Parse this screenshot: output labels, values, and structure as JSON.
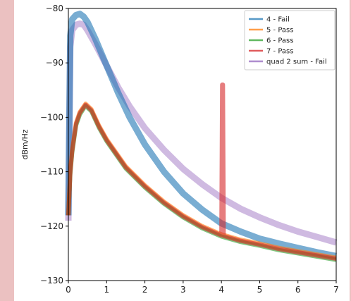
{
  "chart_data": {
    "type": "line",
    "ylabel": "dBm/Hz",
    "xlim": [
      0,
      7
    ],
    "ylim": [
      -130,
      -80
    ],
    "xticks": [
      "0",
      "1",
      "2",
      "3",
      "4",
      "5",
      "6",
      "7"
    ],
    "yticks": [
      "−80",
      "−90",
      "−100",
      "−110",
      "−120",
      "−130"
    ],
    "legend_position": "top-right",
    "series": [
      {
        "name": "4 - Fail",
        "color": "#1f77b4",
        "x": [
          0,
          0.05,
          0.1,
          0.2,
          0.3,
          0.4,
          0.5,
          0.7,
          1.0,
          1.3,
          1.6,
          2.0,
          2.5,
          3.0,
          3.5,
          4.0,
          4.5,
          5.0,
          5.5,
          6.0,
          6.5,
          7.0
        ],
        "y": [
          -118,
          -85,
          -82,
          -81.2,
          -81,
          -81.5,
          -82.5,
          -85.5,
          -90.5,
          -95.5,
          -100,
          -105,
          -110,
          -114,
          -117,
          -119.5,
          -121,
          -122.3,
          -123.2,
          -124,
          -124.8,
          -125.5
        ]
      },
      {
        "name": "5 - Pass",
        "color": "#ff7f0e",
        "x": [
          0,
          0.05,
          0.1,
          0.2,
          0.3,
          0.4,
          0.45,
          0.6,
          0.8,
          1.0,
          1.5,
          2.0,
          2.5,
          3.0,
          3.5,
          4.0,
          4.5,
          5.0,
          5.5,
          6.0,
          6.5,
          7.0
        ],
        "y": [
          -118,
          -110,
          -106,
          -101,
          -99,
          -98,
          -97.5,
          -98.5,
          -101.5,
          -104,
          -109,
          -112.5,
          -115.5,
          -118,
          -120,
          -121.5,
          -122.5,
          -123.2,
          -124,
          -124.6,
          -125.2,
          -125.8
        ]
      },
      {
        "name": "6 - Pass",
        "color": "#2ca02c",
        "x": [
          0,
          0.05,
          0.1,
          0.2,
          0.3,
          0.4,
          0.45,
          0.6,
          0.8,
          1.0,
          1.5,
          2.0,
          2.5,
          3.0,
          3.5,
          4.0,
          4.5,
          5.0,
          5.5,
          6.0,
          6.5,
          7.0
        ],
        "y": [
          -118,
          -110.5,
          -106.5,
          -101.5,
          -99.5,
          -98.4,
          -97.9,
          -98.9,
          -101.9,
          -104.4,
          -109.4,
          -112.9,
          -115.9,
          -118.4,
          -120.4,
          -121.9,
          -122.9,
          -123.6,
          -124.4,
          -125,
          -125.6,
          -126.2
        ]
      },
      {
        "name": "7 - Pass",
        "color": "#d62728",
        "x": [
          0,
          0.05,
          0.1,
          0.2,
          0.3,
          0.4,
          0.45,
          0.6,
          0.8,
          1.0,
          1.5,
          2.0,
          2.5,
          3.0,
          3.5,
          4.0,
          4.02,
          4.04,
          4.06,
          4.5,
          5.0,
          5.5,
          6.0,
          6.5,
          7.0
        ],
        "y": [
          -118,
          -110.2,
          -106.2,
          -101.2,
          -99.2,
          -98.2,
          -97.7,
          -98.7,
          -101.7,
          -104.2,
          -109.2,
          -112.7,
          -115.7,
          -118.2,
          -120.2,
          -121.7,
          -94,
          -94,
          -121.8,
          -122.7,
          -123.4,
          -124.2,
          -124.8,
          -125.4,
          -126
        ]
      },
      {
        "name": "quad 2 sum - Fail",
        "color": "#9467bd",
        "x": [
          0,
          0.05,
          0.1,
          0.2,
          0.3,
          0.4,
          0.5,
          0.7,
          1.0,
          1.3,
          1.6,
          2.0,
          2.5,
          3.0,
          3.5,
          4.0,
          4.5,
          5.0,
          5.5,
          6.0,
          6.5,
          7.0
        ],
        "y": [
          -119,
          -87,
          -84,
          -83,
          -82.8,
          -83,
          -84,
          -86.5,
          -90.5,
          -94.5,
          -98,
          -102,
          -106,
          -109.5,
          -112.3,
          -114.8,
          -116.8,
          -118.4,
          -119.8,
          -121,
          -122,
          -123
        ]
      }
    ]
  }
}
